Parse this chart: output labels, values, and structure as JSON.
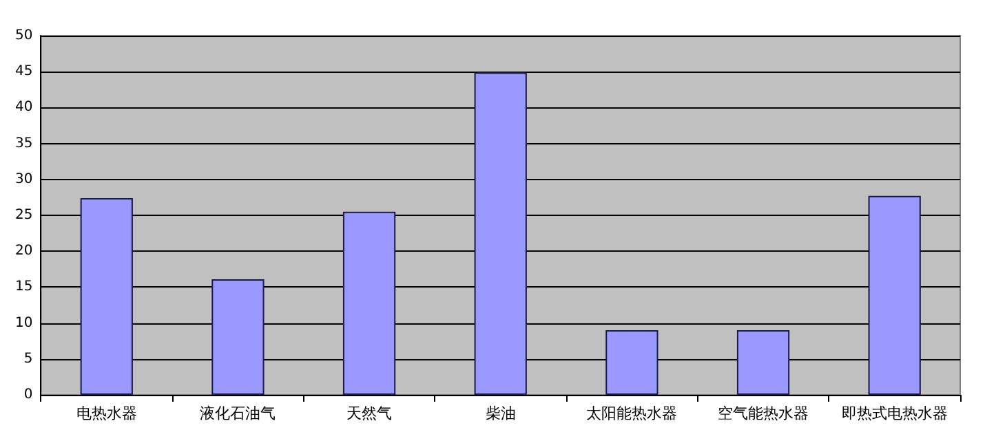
{
  "chart_data": {
    "type": "bar",
    "categories": [
      "电热水器",
      "液化石油气",
      "天然气",
      "柴油",
      "太阳能热水器",
      "空气能热水器",
      "即热式电热水器"
    ],
    "values": [
      27.4,
      16.1,
      25.5,
      44.9,
      9,
      9,
      27.7
    ],
    "color": "#9999ff",
    "ylim": [
      0,
      50
    ],
    "yticks": [
      0,
      5,
      10,
      15,
      20,
      25,
      30,
      35,
      40,
      45,
      50
    ],
    "grid": "y"
  }
}
